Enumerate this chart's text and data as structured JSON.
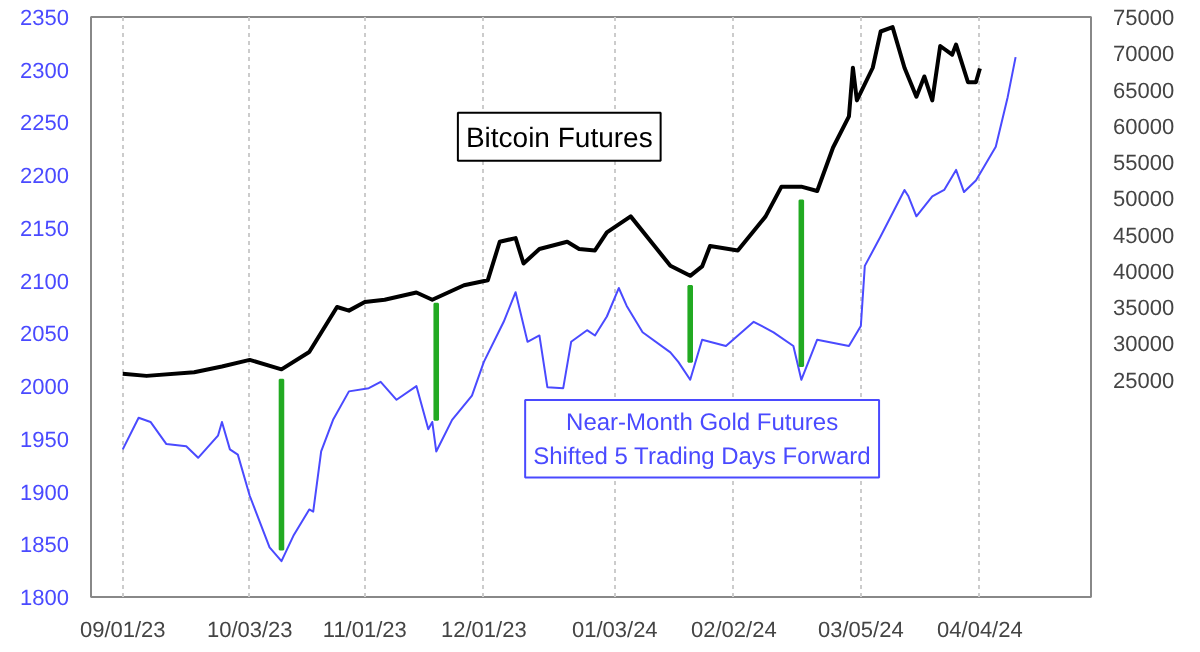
{
  "chart_data": {
    "type": "line",
    "series": [
      {
        "name": "Bitcoin Futures",
        "color": "#000000",
        "axis": "y2",
        "x": [
          "2023-09-01",
          "2023-09-07",
          "2023-09-19",
          "2023-09-26",
          "2023-10-03",
          "2023-10-11",
          "2023-10-18",
          "2023-10-25",
          "2023-10-28",
          "2023-11-01",
          "2023-11-06",
          "2023-11-14",
          "2023-11-18",
          "2023-11-26",
          "2023-12-02",
          "2023-12-05",
          "2023-12-09",
          "2023-12-11",
          "2023-12-15",
          "2023-12-22",
          "2023-12-25",
          "2023-12-29",
          "2024-01-01",
          "2024-01-07",
          "2024-01-13",
          "2024-01-17",
          "2024-01-22",
          "2024-01-25",
          "2024-01-27",
          "2024-02-03",
          "2024-02-10",
          "2024-02-14",
          "2024-02-19",
          "2024-02-23",
          "2024-02-27",
          "2024-03-02",
          "2024-03-03",
          "2024-03-04",
          "2024-03-08",
          "2024-03-10",
          "2024-03-13",
          "2024-03-16",
          "2024-03-19",
          "2024-03-21",
          "2024-03-23",
          "2024-03-25",
          "2024-03-28",
          "2024-03-29",
          "2024-04-01",
          "2024-04-03",
          "2024-04-04"
        ],
        "values": [
          25800,
          25500,
          26000,
          26800,
          27700,
          26400,
          28800,
          35000,
          34500,
          35700,
          36000,
          37000,
          36000,
          38000,
          38700,
          44000,
          44500,
          41000,
          43000,
          44000,
          43000,
          42800,
          45300,
          47500,
          43400,
          40700,
          39300,
          40600,
          43400,
          42800,
          47500,
          51600,
          51600,
          51000,
          57000,
          61300,
          68000,
          63500,
          68000,
          73000,
          73600,
          68000,
          64000,
          66800,
          63500,
          71000,
          69800,
          71200,
          66000,
          66000,
          67900
        ]
      },
      {
        "name": "Near-Month Gold Futures\nShifted 5 Trading Days Forward",
        "color": "#4a4aff",
        "axis": "y",
        "x": [
          "2023-09-01",
          "2023-09-05",
          "2023-09-08",
          "2023-09-12",
          "2023-09-17",
          "2023-09-20",
          "2023-09-25",
          "2023-09-26",
          "2023-09-28",
          "2023-09-30",
          "2023-10-03",
          "2023-10-08",
          "2023-10-11",
          "2023-10-14",
          "2023-10-18",
          "2023-10-19",
          "2023-10-21",
          "2023-10-24",
          "2023-10-28",
          "2023-11-02",
          "2023-11-05",
          "2023-11-09",
          "2023-11-14",
          "2023-11-17",
          "2023-11-18",
          "2023-11-19",
          "2023-11-23",
          "2023-11-28",
          "2023-12-01",
          "2023-12-06",
          "2023-12-09",
          "2023-12-12",
          "2023-12-15",
          "2023-12-17",
          "2023-12-21",
          "2023-12-23",
          "2023-12-27",
          "2023-12-29",
          "2024-01-01",
          "2024-01-04",
          "2024-01-06",
          "2024-01-10",
          "2024-01-17",
          "2024-01-19",
          "2024-01-22",
          "2024-01-25",
          "2024-01-31",
          "2024-02-07",
          "2024-02-12",
          "2024-02-17",
          "2024-02-19",
          "2024-02-23",
          "2024-03-02",
          "2024-03-05",
          "2024-03-06",
          "2024-03-10",
          "2024-03-16",
          "2024-03-17",
          "2024-03-19",
          "2024-03-23",
          "2024-03-26",
          "2024-03-29",
          "2024-03-31",
          "2024-04-03",
          "2024-04-08",
          "2024-04-11",
          "2024-04-13"
        ],
        "values": [
          1940,
          1970,
          1966,
          1945,
          1943,
          1932,
          1953,
          1966,
          1940,
          1935,
          1896,
          1847,
          1834,
          1858,
          1883,
          1881,
          1938,
          1968,
          1995,
          1998,
          2004,
          1987,
          2000,
          1959,
          1966,
          1938,
          1968,
          1991,
          2023,
          2061,
          2089,
          2042,
          2048,
          1999,
          1998,
          2042,
          2053,
          2048,
          2066,
          2093,
          2076,
          2051,
          2032,
          2023,
          2006,
          2044,
          2038,
          2061,
          2051,
          2038,
          2006,
          2044,
          2038,
          2057,
          2114,
          2142,
          2186,
          2180,
          2161,
          2180,
          2186,
          2205,
          2184,
          2195,
          2227,
          2274,
          2312
        ]
      },
      {
        "type": "bar",
        "color": "#22aa22",
        "axis": "y",
        "x": [
          "2023-10-11",
          "2023-11-19",
          "2024-01-22",
          "2024-02-19"
        ],
        "base": [
          1845,
          1968,
          2023,
          2019
        ],
        "values": [
          161,
          110,
          72,
          157
        ]
      }
    ],
    "xlim": [
      "2023-08-24",
      "2024-05-02"
    ],
    "xticks": [
      {
        "value": "2023-09-01",
        "label": "09/01/23"
      },
      {
        "value": "2023-10-03",
        "label": "10/03/23"
      },
      {
        "value": "2023-11-01",
        "label": "11/01/23"
      },
      {
        "value": "2023-12-01",
        "label": "12/01/23"
      },
      {
        "value": "2024-01-03",
        "label": "01/03/24"
      },
      {
        "value": "2024-02-02",
        "label": "02/02/24"
      },
      {
        "value": "2024-03-05",
        "label": "03/05/24"
      },
      {
        "value": "2024-04-04",
        "label": "04/04/24"
      }
    ],
    "ylim": [
      1800,
      2350
    ],
    "yticks": [
      1800,
      1850,
      1900,
      1950,
      2000,
      2050,
      2100,
      2150,
      2200,
      2250,
      2300,
      2350
    ],
    "y2lim": [
      -5000,
      75000
    ],
    "y2ticks": [
      25000,
      30000,
      35000,
      40000,
      45000,
      50000,
      55000,
      60000,
      65000,
      70000,
      75000
    ],
    "grid": "x"
  }
}
